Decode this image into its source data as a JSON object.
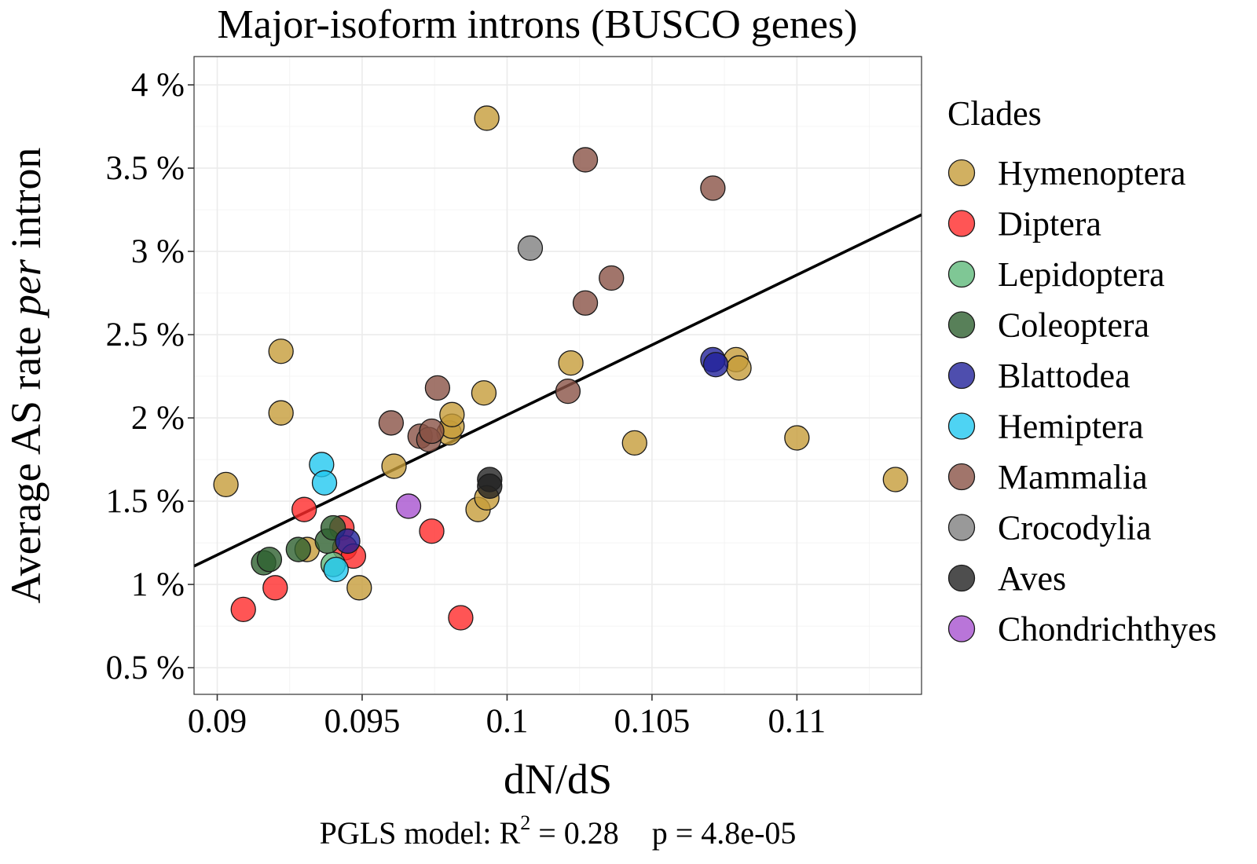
{
  "chart_data": {
    "type": "scatter",
    "title": "Major-isoform introns (BUSCO genes)",
    "xlabel": "dN/dS",
    "ylabel_parts": [
      "Average AS rate ",
      "per",
      " intron"
    ],
    "caption": {
      "prefix": "PGLS model: R",
      "superscript": "2",
      "suffix": " = 0.28",
      "pvalue": "p = 4.8e-05"
    },
    "xlim": [
      0.0892,
      0.1143
    ],
    "ylim": [
      0.34,
      4.17
    ],
    "x_ticks": [
      0.09,
      0.095,
      0.1,
      0.105,
      0.11
    ],
    "x_tick_labels": [
      "0.09",
      "0.095",
      "0.1",
      "0.105",
      "0.11"
    ],
    "y_ticks": [
      0.5,
      1,
      1.5,
      2,
      2.5,
      3,
      3.5,
      4
    ],
    "y_tick_labels": [
      "0.5 %",
      "1 %",
      "1.5 %",
      "2 %",
      "2.5 %",
      "3 %",
      "3.5 %",
      "4 %"
    ],
    "grid": true,
    "fit_line": {
      "x": [
        0.0892,
        0.1143
      ],
      "y": [
        1.11,
        3.22
      ]
    },
    "legend": {
      "title": "Clades",
      "placement": "right"
    },
    "series": [
      {
        "name": "Hymenoptera",
        "color": "#c69c3a",
        "points": [
          [
            0.0993,
            3.8
          ],
          [
            0.0922,
            2.4
          ],
          [
            0.0922,
            2.03
          ],
          [
            0.0903,
            1.6
          ],
          [
            0.0931,
            1.21
          ],
          [
            0.0949,
            0.98
          ],
          [
            0.0961,
            1.71
          ],
          [
            0.098,
            1.91
          ],
          [
            0.0981,
            1.95
          ],
          [
            0.0981,
            2.02
          ],
          [
            0.0992,
            2.15
          ],
          [
            0.099,
            1.45
          ],
          [
            0.0993,
            1.52
          ],
          [
            0.1022,
            2.33
          ],
          [
            0.1044,
            1.85
          ],
          [
            0.1079,
            2.35
          ],
          [
            0.108,
            2.3
          ],
          [
            0.11,
            1.88
          ],
          [
            0.1134,
            1.63
          ]
        ]
      },
      {
        "name": "Diptera",
        "color": "#ff2a2a",
        "points": [
          [
            0.0909,
            0.85
          ],
          [
            0.092,
            0.98
          ],
          [
            0.093,
            1.45
          ],
          [
            0.0943,
            1.34
          ],
          [
            0.0944,
            1.22
          ],
          [
            0.0947,
            1.17
          ],
          [
            0.0974,
            1.32
          ],
          [
            0.0984,
            0.8
          ]
        ]
      },
      {
        "name": "Lepidoptera",
        "color": "#5fb97a",
        "points": [
          [
            0.094,
            1.12
          ]
        ]
      },
      {
        "name": "Coleoptera",
        "color": "#2e6030",
        "points": [
          [
            0.0916,
            1.13
          ],
          [
            0.0918,
            1.15
          ],
          [
            0.0928,
            1.21
          ],
          [
            0.0938,
            1.26
          ],
          [
            0.094,
            1.34
          ]
        ]
      },
      {
        "name": "Blattodea",
        "color": "#22229a",
        "points": [
          [
            0.0945,
            1.26
          ],
          [
            0.1071,
            2.35
          ],
          [
            0.1072,
            2.32
          ]
        ]
      },
      {
        "name": "Hemiptera",
        "color": "#22c8f0",
        "points": [
          [
            0.0936,
            1.72
          ],
          [
            0.0937,
            1.61
          ],
          [
            0.0941,
            1.09
          ]
        ]
      },
      {
        "name": "Mammalia",
        "color": "#8a5246",
        "points": [
          [
            0.096,
            1.97
          ],
          [
            0.097,
            1.89
          ],
          [
            0.0973,
            1.87
          ],
          [
            0.0974,
            1.92
          ],
          [
            0.0976,
            2.18
          ],
          [
            0.1021,
            2.16
          ],
          [
            0.1027,
            2.69
          ],
          [
            0.1027,
            3.55
          ],
          [
            0.1036,
            2.84
          ],
          [
            0.1071,
            3.38
          ]
        ]
      },
      {
        "name": "Crocodylia",
        "color": "#7f7f7f",
        "points": [
          [
            0.1008,
            3.02
          ]
        ]
      },
      {
        "name": "Aves",
        "color": "#222222",
        "points": [
          [
            0.0994,
            1.63
          ],
          [
            0.0994,
            1.59
          ]
        ]
      },
      {
        "name": "Chondrichthyes",
        "color": "#a852d0",
        "points": [
          [
            0.0966,
            1.47
          ]
        ]
      }
    ]
  }
}
